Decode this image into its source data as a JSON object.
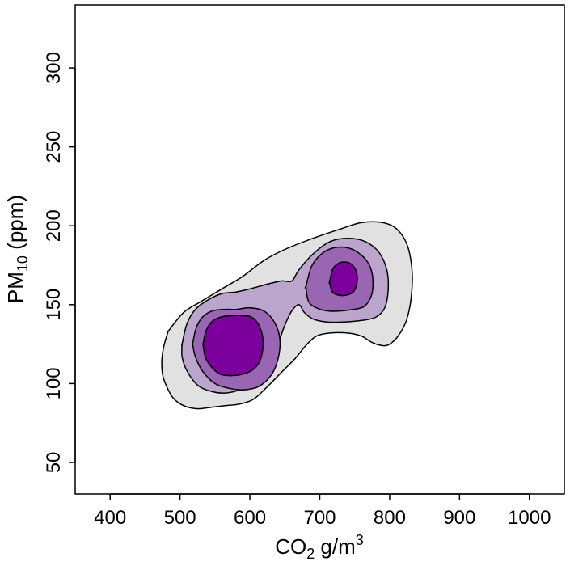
{
  "chart_data": {
    "type": "contour",
    "xlabel": {
      "base": "CO",
      "sub": "2",
      "unit": " g/m",
      "sup": "3"
    },
    "ylabel": {
      "base": "PM",
      "sub": "10",
      "unit": " (ppm)"
    },
    "xlim": [
      350,
      1050
    ],
    "ylim": [
      30,
      340
    ],
    "x_ticks": [
      400,
      500,
      600,
      700,
      800,
      900,
      1000
    ],
    "y_ticks": [
      50,
      100,
      150,
      200,
      250,
      300
    ],
    "x_tick_labels": [
      "400",
      "500",
      "600",
      "700",
      "800",
      "900",
      "1000"
    ],
    "y_tick_labels": [
      "50",
      "100",
      "150",
      "200",
      "250",
      "300"
    ],
    "grid": false,
    "legend": "none",
    "colors": [
      "#e1e1e1",
      "#bba5cc",
      "#9a65b3",
      "#7b009b"
    ],
    "levels": [
      {
        "level": 1,
        "color": "#e1e1e1",
        "regions": [
          [
            [
              483,
              133
            ],
            [
              505,
              145
            ],
            [
              530,
              152
            ],
            [
              560,
              160
            ],
            [
              590,
              168
            ],
            [
              620,
              178
            ],
            [
              650,
              185
            ],
            [
              690,
              192
            ],
            [
              730,
              198
            ],
            [
              760,
              202
            ],
            [
              790,
              202
            ],
            [
              810,
              198
            ],
            [
              825,
              188
            ],
            [
              832,
              172
            ],
            [
              831,
              155
            ],
            [
              824,
              140
            ],
            [
              812,
              130
            ],
            [
              800,
              125
            ],
            [
              790,
              124
            ],
            [
              775,
              126
            ],
            [
              760,
              130
            ],
            [
              740,
              132
            ],
            [
              715,
              132
            ],
            [
              695,
              130
            ],
            [
              680,
              124
            ],
            [
              665,
              116
            ],
            [
              645,
              107
            ],
            [
              625,
              98
            ],
            [
              605,
              90
            ],
            [
              585,
              87
            ],
            [
              565,
              86
            ],
            [
              545,
              85
            ],
            [
              525,
              84
            ],
            [
              505,
              86
            ],
            [
              490,
              91
            ],
            [
              480,
              99
            ],
            [
              475,
              106
            ],
            [
              474,
              115
            ],
            [
              477,
              124
            ],
            [
              483,
              133
            ]
          ]
        ]
      },
      {
        "level": 2,
        "color": "#bba5cc",
        "regions": [
          [
            [
              503,
              125
            ],
            [
              510,
              138
            ],
            [
              522,
              147
            ],
            [
              540,
              153
            ],
            [
              560,
              157
            ],
            [
              580,
              158
            ],
            [
              600,
              160
            ],
            [
              625,
              163
            ],
            [
              645,
              165
            ],
            [
              660,
              165
            ],
            [
              670,
              172
            ],
            [
              690,
              182
            ],
            [
              715,
              190
            ],
            [
              740,
              192
            ],
            [
              765,
              190
            ],
            [
              785,
              183
            ],
            [
              796,
              172
            ],
            [
              798,
              160
            ],
            [
              793,
              148
            ],
            [
              780,
              142
            ],
            [
              760,
              140
            ],
            [
              735,
              139
            ],
            [
              710,
              139
            ],
            [
              690,
              141
            ],
            [
              678,
              145
            ],
            [
              670,
              150
            ],
            [
              660,
              146
            ],
            [
              650,
              137
            ],
            [
              640,
              125
            ],
            [
              625,
              112
            ],
            [
              605,
              101
            ],
            [
              585,
              96
            ],
            [
              565,
              94
            ],
            [
              545,
              95
            ],
            [
              525,
              99
            ],
            [
              510,
              108
            ],
            [
              503,
              117
            ],
            [
              503,
              125
            ]
          ]
        ]
      },
      {
        "level": 3,
        "color": "#9a65b3",
        "regions": [
          [
            [
              518,
              125
            ],
            [
              523,
              135
            ],
            [
              532,
              142
            ],
            [
              546,
              146
            ],
            [
              562,
              147
            ],
            [
              580,
              147
            ],
            [
              600,
              148
            ],
            [
              620,
              146
            ],
            [
              635,
              139
            ],
            [
              643,
              128
            ],
            [
              640,
              115
            ],
            [
              630,
              105
            ],
            [
              612,
              98
            ],
            [
              590,
              96
            ],
            [
              570,
              97
            ],
            [
              550,
              100
            ],
            [
              532,
              108
            ],
            [
              522,
              117
            ],
            [
              518,
              125
            ]
          ],
          [
            [
              680,
              161
            ],
            [
              688,
              174
            ],
            [
              702,
              182
            ],
            [
              720,
              186
            ],
            [
              740,
              186
            ],
            [
              758,
              182
            ],
            [
              771,
              175
            ],
            [
              776,
              166
            ],
            [
              774,
              156
            ],
            [
              764,
              149
            ],
            [
              748,
              147
            ],
            [
              730,
              146
            ],
            [
              712,
              146
            ],
            [
              695,
              148
            ],
            [
              684,
              152
            ],
            [
              680,
              161
            ]
          ]
        ]
      },
      {
        "level": 4,
        "color": "#7b009b",
        "regions": [
          [
            [
              533,
              125
            ],
            [
              537,
              133
            ],
            [
              545,
              139
            ],
            [
              557,
              142
            ],
            [
              572,
              143
            ],
            [
              588,
              143
            ],
            [
              603,
              142
            ],
            [
              614,
              136
            ],
            [
              619,
              126
            ],
            [
              615,
              115
            ],
            [
              605,
              109
            ],
            [
              590,
              106
            ],
            [
              573,
              105
            ],
            [
              557,
              106
            ],
            [
              544,
              111
            ],
            [
              536,
              117
            ],
            [
              533,
              125
            ]
          ],
          [
            [
              714,
              164
            ],
            [
              718,
              172
            ],
            [
              726,
              176
            ],
            [
              737,
              177
            ],
            [
              747,
              175
            ],
            [
              753,
              170
            ],
            [
              753,
              163
            ],
            [
              748,
              158
            ],
            [
              738,
              156
            ],
            [
              727,
              156
            ],
            [
              718,
              158
            ],
            [
              714,
              164
            ]
          ]
        ]
      }
    ]
  }
}
